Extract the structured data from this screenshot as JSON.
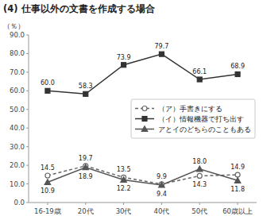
{
  "chart_data": {
    "type": "line",
    "title": "(4) 仕事以外の文書を作成する場合",
    "y_label": "（％）",
    "categories": [
      "16-19歳",
      "20代",
      "30代",
      "40代",
      "50代",
      "60歳以上"
    ],
    "series": [
      {
        "name": "（ア）手書きにする",
        "color": "#666666",
        "marker": "open-circle",
        "line_style": "dashed",
        "values": [
          14.5,
          19.7,
          13.5,
          9.9,
          14.3,
          14.9
        ],
        "value_labels": [
          "14.5",
          "19.7",
          "13.5",
          "9.9",
          "14.3",
          "14.9"
        ]
      },
      {
        "name": "（イ）情報機器で打ち出す",
        "color": "#333333",
        "marker": "square",
        "line_style": "solid",
        "values": [
          60.0,
          58.3,
          73.9,
          79.7,
          66.1,
          68.9
        ],
        "value_labels": [
          "60.0",
          "58.3",
          "73.9",
          "79.7",
          "66.1",
          "68.9"
        ]
      },
      {
        "name": "アとイのどちらのこともある",
        "color": "#555555",
        "marker": "triangle",
        "line_style": "solid",
        "values": [
          10.9,
          18.9,
          12.2,
          9.4,
          18.0,
          11.8
        ],
        "value_labels": [
          "10.9",
          "18.9",
          "12.2",
          "9.4",
          "18.0",
          "11.8"
        ]
      }
    ],
    "ylim": [
      0.0,
      90.0
    ],
    "yticks": [
      {
        "value": 0,
        "label": "0.0"
      },
      {
        "value": 10,
        "label": "10.0"
      },
      {
        "value": 20,
        "label": "20.0"
      },
      {
        "value": 30,
        "label": "30.0"
      },
      {
        "value": 40,
        "label": "40.0"
      },
      {
        "value": 50,
        "label": "50.0"
      },
      {
        "value": 60,
        "label": "60.0"
      },
      {
        "value": 70,
        "label": "70.0"
      },
      {
        "value": 80,
        "label": "80.0"
      },
      {
        "value": 90,
        "label": "90.0"
      }
    ],
    "grid": false,
    "legend": "center right",
    "data_labels": true
  }
}
